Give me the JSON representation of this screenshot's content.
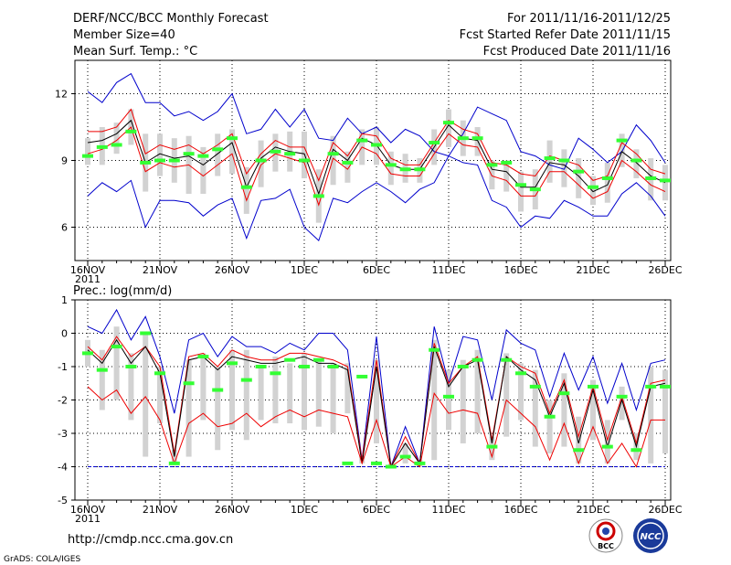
{
  "header": {
    "title": "DERF/NCC/BCC Monthly Forecast",
    "member_size": "Member Size=40",
    "variable": "Mean Surf. Temp.: °C",
    "period": "For 2011/11/16-2011/12/25",
    "started": "Fcst Started Refer Date 2011/11/15",
    "produced": "Fcst Produced Date 2011/11/16"
  },
  "footer": {
    "url": "http://cmdp.ncc.cma.gov.cn",
    "credit": "GrADS: COLA/IGES",
    "logo_bcc": "BCC",
    "logo_ncc": "NCC"
  },
  "colors": {
    "bar": "#d2d2d2",
    "obs": "#33ff33",
    "mean": "#000000",
    "inner": "#ee0000",
    "outer": "#0000cc",
    "grid": "#000000",
    "floor": "#0000cc"
  },
  "chart_data": [
    {
      "type": "line",
      "title": "Mean Surf. Temp.: °C",
      "x_tick_labels": [
        "16NOV",
        "21NOV",
        "26NOV",
        "1DEC",
        "6DEC",
        "11DEC",
        "16DEC",
        "21DEC",
        "26DEC"
      ],
      "x_year_label": "2011",
      "ylim": [
        4.5,
        13.5
      ],
      "y_ticks": [
        6,
        9,
        12
      ],
      "y_tick_labels": [
        "6",
        "9",
        "12"
      ],
      "series": [
        {
          "name": "max",
          "values": [
            12.1,
            11.6,
            12.5,
            12.9,
            11.6,
            11.6,
            11.0,
            11.2,
            10.8,
            11.2,
            12.0,
            10.2,
            10.4,
            11.3,
            10.5,
            11.3,
            10.0,
            9.9,
            10.9,
            10.2,
            10.5,
            9.8,
            10.4,
            10.1,
            9.4,
            9.2,
            10.2,
            11.4,
            11.1,
            10.8,
            9.4,
            9.2,
            8.8,
            8.6,
            10.0,
            9.5,
            8.9,
            9.4,
            10.6,
            9.9,
            8.9
          ]
        },
        {
          "name": "upper",
          "values": [
            10.3,
            10.3,
            10.5,
            11.3,
            9.3,
            9.7,
            9.5,
            9.7,
            9.3,
            9.7,
            10.2,
            8.4,
            9.3,
            9.9,
            9.6,
            9.6,
            8.1,
            9.8,
            9.2,
            10.2,
            10.1,
            9.1,
            8.8,
            8.8,
            9.8,
            10.8,
            10.4,
            10.2,
            8.9,
            8.8,
            8.4,
            8.3,
            9.2,
            9.0,
            8.8,
            8.1,
            8.3,
            9.8,
            9.3,
            8.6,
            8.4
          ]
        },
        {
          "name": "mean",
          "values": [
            9.8,
            9.9,
            10.2,
            10.8,
            8.9,
            9.3,
            9.1,
            9.2,
            8.8,
            9.3,
            9.8,
            7.8,
            9.1,
            9.6,
            9.4,
            9.3,
            7.5,
            9.5,
            9.0,
            10.0,
            9.7,
            8.8,
            8.6,
            8.6,
            9.6,
            10.6,
            10.0,
            9.9,
            8.6,
            8.5,
            7.8,
            7.8,
            8.9,
            8.8,
            8.3,
            7.6,
            7.9,
            9.4,
            8.9,
            8.3,
            8.0
          ]
        },
        {
          "name": "lower",
          "values": [
            9.3,
            9.5,
            9.9,
            10.5,
            8.5,
            8.9,
            8.7,
            8.8,
            8.3,
            8.8,
            9.3,
            7.2,
            8.8,
            9.3,
            9.1,
            8.9,
            7.0,
            9.1,
            8.6,
            9.6,
            9.3,
            8.4,
            8.3,
            8.3,
            9.3,
            10.2,
            9.7,
            9.6,
            8.3,
            8.1,
            7.4,
            7.4,
            8.5,
            8.5,
            7.9,
            7.3,
            7.6,
            9.0,
            8.5,
            7.9,
            7.6
          ]
        },
        {
          "name": "min",
          "values": [
            7.4,
            8.0,
            7.6,
            8.1,
            6.0,
            7.2,
            7.2,
            7.1,
            6.5,
            7.0,
            7.3,
            5.5,
            7.2,
            7.3,
            7.7,
            6.0,
            5.4,
            7.3,
            7.1,
            7.6,
            8.0,
            7.6,
            7.1,
            7.7,
            8.0,
            9.2,
            8.9,
            8.8,
            7.2,
            6.9,
            6.0,
            6.5,
            6.4,
            7.2,
            6.9,
            6.5,
            6.5,
            7.5,
            8.0,
            7.4,
            6.5
          ]
        }
      ],
      "spread": [
        [
          8.8,
          10.0
        ],
        [
          8.8,
          10.5
        ],
        [
          9.3,
          10.7
        ],
        [
          9.7,
          11.3
        ],
        [
          7.6,
          10.2
        ],
        [
          8.3,
          10.2
        ],
        [
          8.0,
          10.0
        ],
        [
          7.5,
          10.1
        ],
        [
          7.5,
          9.6
        ],
        [
          8.3,
          10.2
        ],
        [
          8.4,
          10.4
        ],
        [
          6.6,
          8.7
        ],
        [
          7.8,
          9.9
        ],
        [
          8.5,
          10.2
        ],
        [
          8.5,
          10.3
        ],
        [
          8.2,
          10.3
        ],
        [
          6.2,
          8.6
        ],
        [
          7.9,
          10.1
        ],
        [
          8.0,
          9.4
        ],
        [
          8.8,
          10.4
        ],
        [
          8.8,
          10.5
        ],
        [
          7.9,
          9.4
        ],
        [
          8.0,
          9.3
        ],
        [
          8.0,
          9.1
        ],
        [
          8.8,
          10.4
        ],
        [
          9.6,
          11.3
        ],
        [
          9.2,
          10.8
        ],
        [
          9.2,
          10.5
        ],
        [
          7.7,
          9.0
        ],
        [
          7.6,
          9.0
        ],
        [
          6.7,
          8.5
        ],
        [
          6.8,
          8.6
        ],
        [
          8.0,
          9.9
        ],
        [
          7.8,
          9.5
        ],
        [
          7.3,
          9.1
        ],
        [
          7.0,
          8.3
        ],
        [
          7.1,
          8.9
        ],
        [
          8.7,
          10.2
        ],
        [
          8.2,
          9.5
        ],
        [
          7.2,
          9.1
        ],
        [
          7.2,
          8.8
        ]
      ],
      "obs": [
        9.2,
        9.6,
        9.7,
        10.3,
        8.9,
        9.0,
        9.0,
        9.3,
        9.2,
        9.5,
        10.0,
        7.8,
        9.0,
        9.4,
        9.3,
        9.0,
        7.4,
        9.3,
        8.9,
        9.9,
        9.7,
        8.8,
        8.6,
        8.6,
        9.8,
        10.7,
        10.0,
        10.0,
        8.8,
        8.9,
        7.9,
        7.7,
        9.1,
        9.0,
        8.5,
        7.8,
        8.2,
        9.9,
        9.0,
        8.2,
        8.1
      ]
    },
    {
      "type": "line",
      "title": "Prec.: log(mm/d)",
      "x_tick_labels": [
        "16NOV",
        "21NOV",
        "26NOV",
        "1DEC",
        "6DEC",
        "11DEC",
        "16DEC",
        "21DEC",
        "26DEC"
      ],
      "x_year_label": "2011",
      "ylim": [
        -5,
        1
      ],
      "y_ticks": [
        -5,
        -4,
        -3,
        -2,
        -1,
        0,
        1
      ],
      "y_tick_labels": [
        "-5",
        "-4",
        "-3",
        "-2",
        "-1",
        "0",
        "1"
      ],
      "floor": -4,
      "series": [
        {
          "name": "max",
          "values": [
            0.2,
            0.0,
            0.7,
            -0.2,
            0.5,
            -0.7,
            -2.4,
            -0.2,
            0.0,
            -0.7,
            -0.1,
            -0.4,
            -0.4,
            -0.6,
            -0.3,
            -0.5,
            0.0,
            0.0,
            -0.5,
            -3.8,
            -0.1,
            -4.0,
            -2.8,
            -3.9,
            0.2,
            -1.5,
            -0.1,
            -0.2,
            -2.0,
            0.1,
            -0.3,
            -0.5,
            -1.9,
            -0.6,
            -1.7,
            -0.7,
            -2.1,
            -0.9,
            -2.3,
            -0.9,
            -0.8
          ]
        },
        {
          "name": "upper",
          "values": [
            -0.4,
            -0.8,
            -0.1,
            -0.7,
            -0.4,
            -1.0,
            -3.6,
            -0.7,
            -0.6,
            -1.0,
            -0.5,
            -0.7,
            -0.8,
            -0.8,
            -0.6,
            -0.6,
            -0.7,
            -0.8,
            -1.0,
            -3.8,
            -0.8,
            -4.0,
            -3.1,
            -3.9,
            -0.3,
            -1.5,
            -1.0,
            -0.7,
            -3.2,
            -0.7,
            -1.0,
            -1.2,
            -2.4,
            -1.4,
            -3.1,
            -1.6,
            -3.2,
            -1.9,
            -3.3,
            -1.5,
            -1.4
          ]
        },
        {
          "name": "mean",
          "values": [
            -0.5,
            -0.9,
            -0.2,
            -0.9,
            -0.4,
            -1.2,
            -3.7,
            -0.8,
            -0.7,
            -1.1,
            -0.7,
            -0.8,
            -0.9,
            -0.9,
            -0.8,
            -0.7,
            -0.9,
            -0.9,
            -1.1,
            -3.9,
            -1.0,
            -4.0,
            -3.3,
            -3.9,
            -0.4,
            -1.6,
            -1.0,
            -0.8,
            -3.3,
            -0.7,
            -1.1,
            -1.4,
            -2.5,
            -1.5,
            -3.3,
            -1.7,
            -3.4,
            -2.0,
            -3.4,
            -1.6,
            -1.5
          ]
        },
        {
          "name": "lower",
          "values": [
            -1.6,
            -2.0,
            -1.7,
            -2.4,
            -1.9,
            -2.6,
            -3.9,
            -2.7,
            -2.4,
            -2.8,
            -2.7,
            -2.4,
            -2.8,
            -2.5,
            -2.3,
            -2.5,
            -2.3,
            -2.4,
            -2.5,
            -3.9,
            -2.6,
            -4.0,
            -3.7,
            -4.0,
            -1.8,
            -2.4,
            -2.3,
            -2.4,
            -3.7,
            -2.0,
            -2.4,
            -2.8,
            -3.8,
            -2.7,
            -3.9,
            -2.8,
            -3.9,
            -3.3,
            -4.0,
            -2.6,
            -2.6
          ]
        }
      ],
      "spread": [
        [
          -1.0,
          -0.2
        ],
        [
          -2.3,
          -0.5
        ],
        [
          -2.0,
          0.2
        ],
        [
          -2.6,
          -0.6
        ],
        [
          -3.7,
          0.0
        ],
        [
          -2.7,
          -1.0
        ],
        [
          -3.9,
          -3.5
        ],
        [
          -3.7,
          -0.8
        ],
        [
          -2.6,
          -0.6
        ],
        [
          -3.5,
          -1.0
        ],
        [
          -2.9,
          -0.5
        ],
        [
          -3.2,
          -0.5
        ],
        [
          -2.6,
          -1.0
        ],
        [
          -2.7,
          -0.7
        ],
        [
          -2.7,
          -0.9
        ],
        [
          -2.9,
          -0.6
        ],
        [
          -2.8,
          -0.8
        ],
        [
          -3.0,
          -0.9
        ],
        [
          -2.4,
          -0.9
        ],
        [
          -3.9,
          -3.7
        ],
        [
          -3.3,
          -0.8
        ],
        [
          -4.0,
          -3.9
        ],
        [
          -3.9,
          -3.3
        ],
        [
          -4.0,
          -3.8
        ],
        [
          -3.8,
          -0.2
        ],
        [
          -2.9,
          -1.1
        ],
        [
          -3.3,
          -0.8
        ],
        [
          -3.0,
          -0.5
        ],
        [
          -3.8,
          -3.1
        ],
        [
          -3.1,
          -0.6
        ],
        [
          -2.6,
          -0.9
        ],
        [
          -3.4,
          -1.1
        ],
        [
          -3.6,
          -2.0
        ],
        [
          -3.4,
          -1.2
        ],
        [
          -3.9,
          -2.5
        ],
        [
          -3.2,
          -1.4
        ],
        [
          -3.9,
          -2.6
        ],
        [
          -2.6,
          -1.6
        ],
        [
          -3.8,
          -3.0
        ],
        [
          -3.9,
          -1.0
        ],
        [
          -3.6,
          -1.1
        ]
      ],
      "obs": [
        -0.6,
        -1.1,
        -0.4,
        -1.0,
        0.0,
        -1.2,
        -3.9,
        -1.5,
        -0.7,
        -1.7,
        -0.9,
        -1.4,
        -1.0,
        -1.2,
        -0.8,
        -1.0,
        -0.8,
        -1.0,
        -3.9,
        -1.3,
        -3.9,
        -4.0,
        -3.7,
        -3.9,
        -0.5,
        -1.9,
        -1.0,
        -0.8,
        -3.4,
        -0.8,
        -1.2,
        -1.6,
        -2.5,
        -1.8,
        -3.5,
        -1.6,
        -3.4,
        -1.9,
        -3.5,
        -1.6,
        -1.6
      ]
    }
  ]
}
